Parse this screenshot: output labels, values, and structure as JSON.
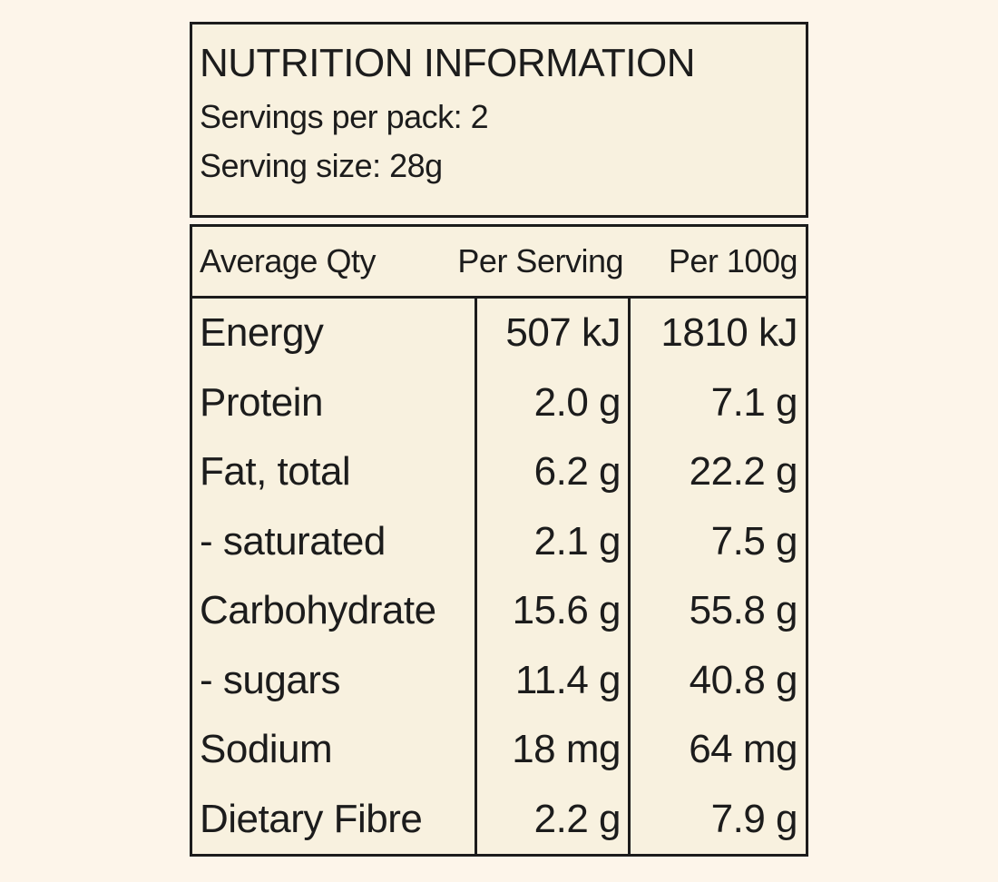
{
  "colors": {
    "page_background": "#fdf5ea",
    "label_background": "#f8f1df",
    "ink": "#1c1c1c"
  },
  "header": {
    "title": "NUTRITION INFORMATION",
    "servings_per_pack": "Servings per pack: 2",
    "serving_size": "Serving size: 28g"
  },
  "table": {
    "columns": [
      "Average Qty",
      "Per Serving",
      "Per 100g"
    ],
    "rows": [
      {
        "label": "Energy",
        "per_serving": "507 kJ",
        "per_100g": "1810 kJ"
      },
      {
        "label": "Protein",
        "per_serving": "2.0 g",
        "per_100g": "7.1 g"
      },
      {
        "label": "Fat, total",
        "per_serving": "6.2 g",
        "per_100g": "22.2 g"
      },
      {
        "label": "- saturated",
        "per_serving": "2.1 g",
        "per_100g": "7.5 g"
      },
      {
        "label": "Carbohydrate",
        "per_serving": "15.6 g",
        "per_100g": "55.8 g"
      },
      {
        "label": "- sugars",
        "per_serving": "11.4 g",
        "per_100g": "40.8 g"
      },
      {
        "label": "Sodium",
        "per_serving": "18 mg",
        "per_100g": "64 mg"
      },
      {
        "label": "Dietary Fibre",
        "per_serving": "2.2 g",
        "per_100g": "7.9 g"
      }
    ]
  }
}
